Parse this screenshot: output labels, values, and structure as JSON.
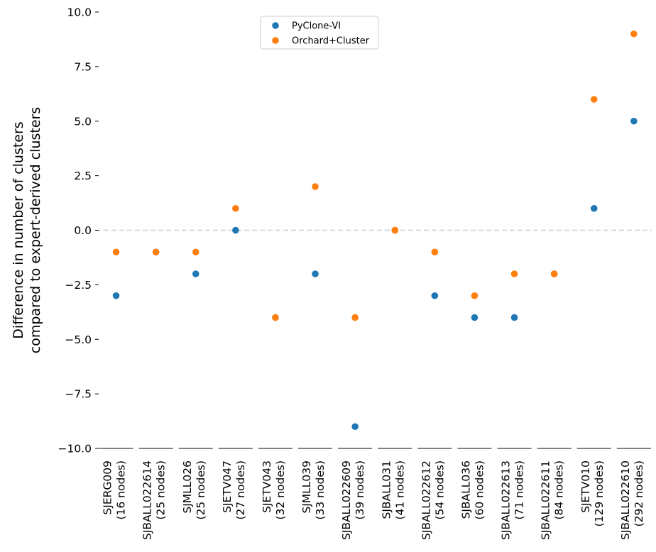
{
  "chart_data": {
    "type": "scatter",
    "title": "",
    "xlabel": "",
    "ylabel_lines": [
      "Difference in number of clusters",
      "compared to expert-derived clusters"
    ],
    "ylim": [
      -10.0,
      10.0
    ],
    "yticks": [
      10.0,
      7.5,
      5.0,
      2.5,
      0.0,
      -2.5,
      -5.0,
      -7.5,
      -10.0
    ],
    "ytick_labels": [
      "10.0",
      "7.5",
      "5.0",
      "2.5",
      "0.0",
      "−2.5",
      "−5.0",
      "−7.5",
      "−10.0"
    ],
    "reference_line": 0,
    "categories": [
      {
        "name": "SJERG009",
        "nodes": "(16 nodes)"
      },
      {
        "name": "SJBALL022614",
        "nodes": "(25 nodes)"
      },
      {
        "name": "SJMLL026",
        "nodes": "(25 nodes)"
      },
      {
        "name": "SJETV047",
        "nodes": "(27 nodes)"
      },
      {
        "name": "SJETV043",
        "nodes": "(32 nodes)"
      },
      {
        "name": "SJMLL039",
        "nodes": "(33 nodes)"
      },
      {
        "name": "SJBALL022609",
        "nodes": "(39 nodes)"
      },
      {
        "name": "SJBALL031",
        "nodes": "(41 nodes)"
      },
      {
        "name": "SJBALL022612",
        "nodes": "(54 nodes)"
      },
      {
        "name": "SJBALL036",
        "nodes": "(60 nodes)"
      },
      {
        "name": "SJBALL022613",
        "nodes": "(71 nodes)"
      },
      {
        "name": "SJBALL022611",
        "nodes": "(84 nodes)"
      },
      {
        "name": "SJETV010",
        "nodes": "(129 nodes)"
      },
      {
        "name": "SJBALL022610",
        "nodes": "(292 nodes)"
      }
    ],
    "series": [
      {
        "name": "PyClone-VI",
        "color": "#1f77b4",
        "values": [
          -3,
          -1,
          -2,
          0,
          -4,
          -2,
          -9,
          0,
          -3,
          -4,
          -4,
          -2,
          1,
          5
        ]
      },
      {
        "name": "Orchard+Cluster",
        "color": "#ff7f0e",
        "values": [
          -1,
          -1,
          -1,
          1,
          -4,
          2,
          -4,
          0,
          -1,
          -3,
          -2,
          -2,
          6,
          9
        ]
      }
    ],
    "legend_position": "top-center"
  }
}
